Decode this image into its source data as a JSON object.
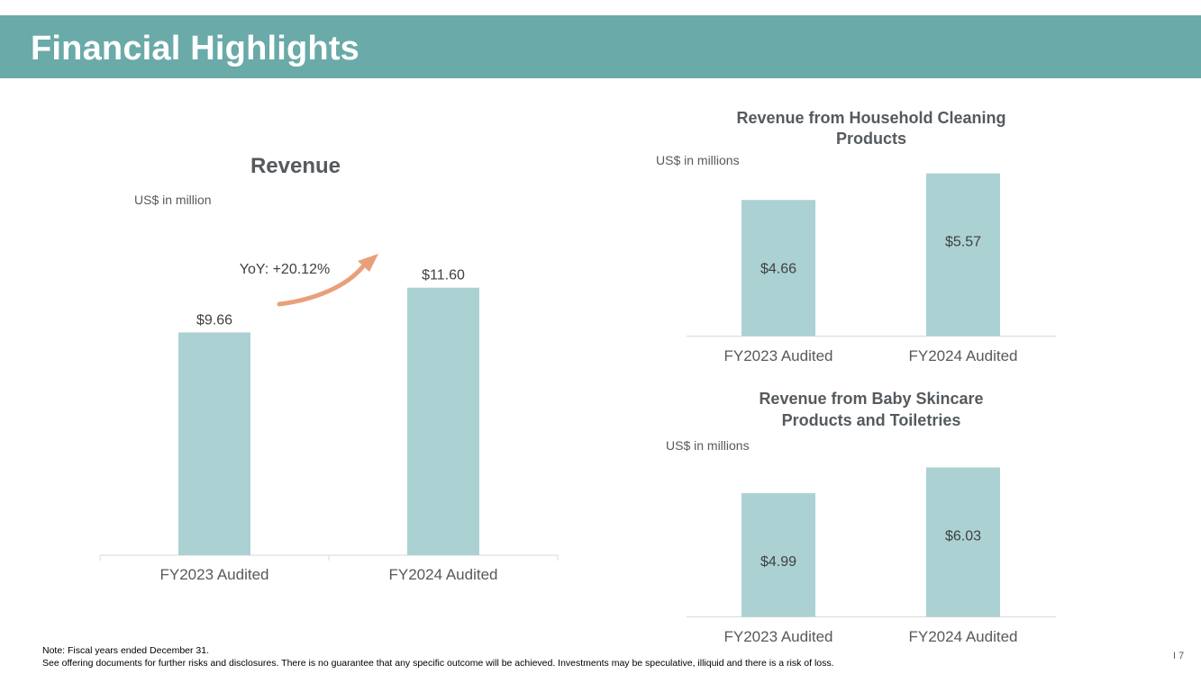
{
  "header": {
    "title": "Financial Highlights"
  },
  "colors": {
    "header_bg": "#6aaaa8",
    "bar": "#abd1d3",
    "arrow": "#e9a07a",
    "axis": "#d9d9d9"
  },
  "chart_data": [
    {
      "type": "bar",
      "title": "Revenue",
      "unit_label": "US$ in million",
      "categories": [
        "FY2023 Audited",
        "FY2024 Audited"
      ],
      "values": [
        9.66,
        11.6
      ],
      "data_labels": [
        "$9.66",
        "$11.60"
      ],
      "ylim": [
        0,
        13.5
      ],
      "annotation": "YoY: +20.12%"
    },
    {
      "type": "bar",
      "title_lines": [
        "Revenue from Household Cleaning",
        "Products"
      ],
      "unit_label": "US$ in millions",
      "categories": [
        "FY2023 Audited",
        "FY2024 Audited"
      ],
      "values": [
        4.66,
        5.57
      ],
      "data_labels": [
        "$4.66",
        "$5.57"
      ],
      "ylim": [
        0,
        5.7
      ]
    },
    {
      "type": "bar",
      "title_lines": [
        "Revenue from Baby Skincare",
        "Products and Toiletries"
      ],
      "unit_label": "US$ in millions",
      "categories": [
        "FY2023 Audited",
        "FY2024 Audited"
      ],
      "values": [
        4.99,
        6.03
      ],
      "data_labels": [
        "$4.99",
        "$6.03"
      ],
      "ylim": [
        0,
        6.1
      ]
    }
  ],
  "footer": {
    "note": "Note: Fiscal years ended December 31.",
    "disclaimer": "See offering documents for further risks and disclosures. There is no guarantee that any specific outcome will be achieved. Investments may be speculative, illiquid and there is a risk of loss.",
    "page_number": "I 7"
  }
}
